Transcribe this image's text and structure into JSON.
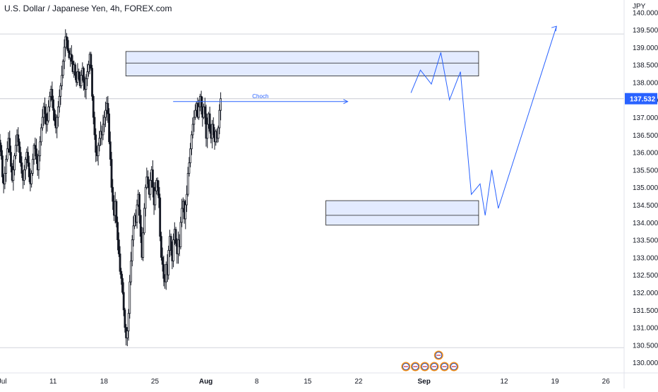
{
  "header": {
    "title": "U.S. Dollar / Japanese Yen, 4h, FOREX.com"
  },
  "chart_data": {
    "type": "candlestick",
    "currency_label": "JPY",
    "price_axis": {
      "ticks": [
        "140.000",
        "139.500",
        "139.000",
        "138.500",
        "138.000",
        "137.500",
        "137.000",
        "136.500",
        "136.000",
        "135.500",
        "135.000",
        "134.500",
        "134.000",
        "133.500",
        "133.000",
        "132.500",
        "132.000",
        "131.500",
        "131.000",
        "130.500",
        "130.000"
      ],
      "ylim": [
        129.7,
        140.35
      ]
    },
    "time_axis": {
      "labels": [
        "Jul",
        "11",
        "18",
        "25",
        "Aug",
        "8",
        "15",
        "22",
        "Sep",
        "12",
        "19",
        "26"
      ],
      "bold_labels": [
        "Aug",
        "Sep"
      ],
      "label_days": [
        4,
        11,
        18,
        25,
        32,
        39,
        46,
        53,
        62,
        73,
        80,
        87
      ],
      "xlim": [
        3.7,
        89.5
      ]
    },
    "current_price": {
      "value": 137.532,
      "label": "137.532",
      "color": "#2962ff"
    },
    "reference_lines": [
      139.38,
      130.42
    ],
    "zones": [
      {
        "name": "supply-zone",
        "x1": 21,
        "x2": 69.5,
        "y1": 138.18,
        "y2": 138.88,
        "mid": 138.55,
        "color": "#2962ff"
      },
      {
        "name": "demand-zone",
        "x1": 48.5,
        "x2": 69.5,
        "y1": 133.92,
        "y2": 134.62,
        "mid": 134.2,
        "color": "#2962ff"
      }
    ],
    "choch": {
      "label": "Choch",
      "x1": 27.5,
      "x2": 51.5,
      "y": 137.45
    },
    "projection_path": [
      [
        60.2,
        137.7
      ],
      [
        61.5,
        138.35
      ],
      [
        63,
        137.95
      ],
      [
        64.3,
        138.85
      ],
      [
        65.5,
        137.5
      ],
      [
        67,
        138.3
      ],
      [
        68.5,
        134.8
      ],
      [
        69.7,
        135.1
      ],
      [
        70.4,
        134.2
      ],
      [
        71.3,
        135.5
      ],
      [
        72.2,
        134.4
      ],
      [
        80.2,
        139.6
      ]
    ],
    "earnings_badges": [
      {
        "day": 64,
        "row": 1
      },
      {
        "day": 59.5,
        "row": 0
      },
      {
        "day": 60.8,
        "row": 0
      },
      {
        "day": 62.1,
        "row": 0
      },
      {
        "day": 63.4,
        "row": 0
      },
      {
        "day": 64.8,
        "row": 0
      },
      {
        "day": 66.1,
        "row": 0
      }
    ],
    "ohlc_series": {
      "up_color": "#131722",
      "down_color": "#131722",
      "start_day": 3.7,
      "step_days": 0.1667,
      "closes": [
        136.2,
        135.9,
        135.3,
        135.1,
        135.4,
        135.8,
        136.1,
        136.4,
        136.0,
        135.6,
        135.2,
        135.5,
        135.9,
        136.2,
        136.5,
        136.3,
        136.0,
        135.7,
        135.4,
        135.2,
        135.5,
        135.8,
        136.0,
        135.7,
        135.3,
        135.1,
        135.4,
        135.8,
        136.2,
        136.1,
        135.8,
        135.5,
        135.9,
        136.3,
        136.7,
        137.0,
        137.3,
        137.1,
        136.8,
        136.9,
        137.3,
        137.6,
        137.8,
        137.5,
        137.2,
        136.9,
        136.7,
        137.0,
        137.3,
        137.6,
        137.9,
        138.2,
        138.6,
        139.0,
        139.3,
        139.2,
        138.9,
        138.7,
        138.8,
        138.6,
        138.3,
        138.5,
        138.2,
        138.0,
        138.3,
        138.1,
        137.9,
        138.2,
        138.4,
        138.0,
        137.8,
        138.1,
        138.3,
        138.5,
        138.8,
        138.4,
        137.6,
        137.0,
        136.5,
        136.0,
        135.9,
        136.2,
        136.4,
        136.6,
        136.5,
        136.8,
        137.0,
        137.2,
        137.4,
        137.1,
        136.3,
        135.8,
        135.0,
        134.6,
        134.2,
        134.6,
        134.0,
        133.5,
        133.1,
        132.6,
        132.4,
        132.0,
        131.5,
        131.0,
        130.7,
        130.9,
        131.4,
        132.3,
        132.9,
        133.5,
        133.9,
        134.2,
        134.0,
        134.5,
        134.8,
        134.2,
        133.6,
        133.0,
        133.7,
        134.4,
        135.0,
        135.3,
        135.1,
        134.8,
        135.2,
        135.5,
        135.0,
        134.5,
        134.9,
        135.2,
        135.0,
        134.7,
        133.6,
        133.0,
        132.8,
        132.4,
        132.3,
        132.8,
        132.5,
        133.2,
        133.6,
        133.2,
        132.9,
        133.5,
        133.8,
        133.4,
        133.1,
        133.5,
        133.3,
        134.0,
        134.4,
        134.6,
        134.1,
        134.5,
        134.8,
        135.4,
        135.7,
        136.1,
        136.5,
        136.8,
        137.0,
        137.2,
        137.4,
        137.0,
        137.3,
        137.6,
        137.3,
        137.0,
        137.3,
        137.1,
        136.4,
        136.8,
        137.1,
        136.6,
        136.4,
        136.8,
        136.5,
        136.3,
        136.6,
        136.4,
        136.7,
        137.2,
        137.532
      ]
    }
  }
}
